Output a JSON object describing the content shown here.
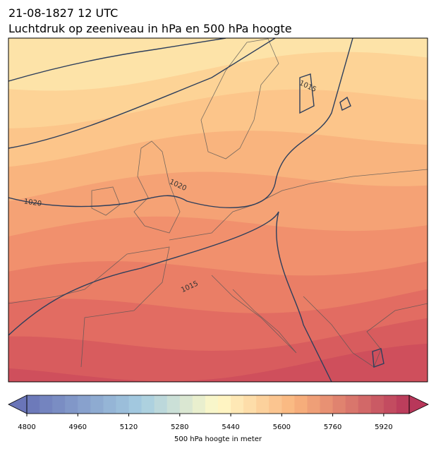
{
  "header": {
    "date": "21-08-1827 12 UTC",
    "title": "Luchtdruk op zeeniveau in hPa en 500 hPa hoogte"
  },
  "map": {
    "contour_labels": [
      "1015",
      "1020",
      "1020",
      "1015"
    ]
  },
  "colorbar": {
    "range": [
      4800,
      6000
    ],
    "ticks": [
      4800,
      4960,
      5120,
      5280,
      5440,
      5600,
      5760,
      5920
    ],
    "label": "500 hPa hoogte in meter"
  }
}
